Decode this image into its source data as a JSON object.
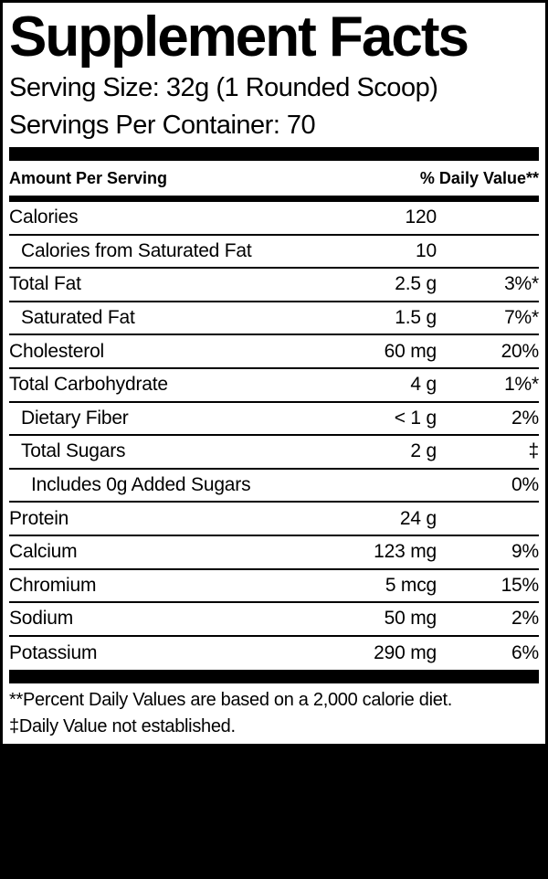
{
  "label": {
    "title": "Supplement Facts",
    "serving_size": "Serving Size: 32g (1 Rounded Scoop)",
    "servings_per_container": "Servings Per Container: 70",
    "columns": {
      "amount_header": "Amount Per Serving",
      "dv_header": "% Daily Value**"
    },
    "rows": [
      {
        "name": "Calories",
        "amount": "120",
        "dv": "",
        "indent": 0
      },
      {
        "name": "Calories from Saturated Fat",
        "amount": "10",
        "dv": "",
        "indent": 1
      },
      {
        "name": "Total Fat",
        "amount": "2.5 g",
        "dv": "3%*",
        "indent": 0
      },
      {
        "name": "Saturated Fat",
        "amount": "1.5 g",
        "dv": "7%*",
        "indent": 1
      },
      {
        "name": "Cholesterol",
        "amount": "60 mg",
        "dv": "20%",
        "indent": 0
      },
      {
        "name": "Total Carbohydrate",
        "amount": "4 g",
        "dv": "1%*",
        "indent": 0
      },
      {
        "name": "Dietary Fiber",
        "amount": "< 1 g",
        "dv": "2%",
        "indent": 1
      },
      {
        "name": "Total Sugars",
        "amount": "2 g",
        "dv": "‡",
        "indent": 1
      },
      {
        "name": "Includes 0g Added Sugars",
        "amount": "",
        "dv": "0%",
        "indent": 2
      },
      {
        "name": "Protein",
        "amount": "24 g",
        "dv": "",
        "indent": 0
      },
      {
        "name": "Calcium",
        "amount": "123 mg",
        "dv": "9%",
        "indent": 0
      },
      {
        "name": "Chromium",
        "amount": "5 mcg",
        "dv": "15%",
        "indent": 0
      },
      {
        "name": "Sodium",
        "amount": "50 mg",
        "dv": "2%",
        "indent": 0
      },
      {
        "name": "Potassium",
        "amount": "290 mg",
        "dv": "6%",
        "indent": 0
      }
    ],
    "footnotes": [
      "**Percent Daily Values are based on a 2,000 calorie diet.",
      "‡Daily Value not established."
    ],
    "colors": {
      "ink": "#000000",
      "paper": "#ffffff"
    }
  }
}
